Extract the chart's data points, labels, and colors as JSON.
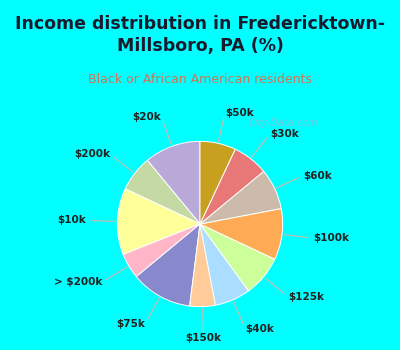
{
  "title": "Income distribution in Fredericktown-\nMillsboro, PA (%)",
  "subtitle": "Black or African American residents",
  "title_color": "#1a1a2e",
  "subtitle_color": "#cc7755",
  "bg_cyan": "#00ffff",
  "bg_chart": "#e8f5ee",
  "watermark": "City-Data.com",
  "labels": [
    "$20k",
    "$200k",
    "$10k",
    "> $200k",
    "$75k",
    "$150k",
    "$40k",
    "$125k",
    "$100k",
    "$60k",
    "$30k",
    "$50k"
  ],
  "sizes": [
    11,
    7,
    13,
    5,
    12,
    5,
    7,
    8,
    10,
    8,
    7,
    7
  ],
  "colors": [
    "#b8a9d9",
    "#c5d9a4",
    "#ffff99",
    "#ffb6c8",
    "#8888cc",
    "#ffcc99",
    "#aaddff",
    "#ccff99",
    "#ffaa55",
    "#ccbbaa",
    "#e87878",
    "#c8a020"
  ],
  "startangle": 90
}
